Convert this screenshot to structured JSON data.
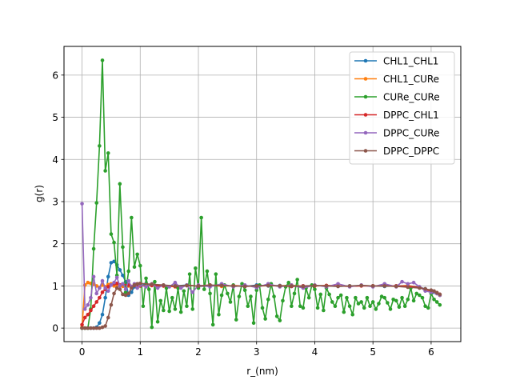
{
  "chart_data": {
    "type": "line",
    "title": "",
    "xlabel": "r_(nm)",
    "ylabel": "g(r)",
    "xlim": [
      -0.31,
      6.51
    ],
    "ylim": [
      -0.32,
      6.68
    ],
    "xticks": [
      0,
      1,
      2,
      3,
      4,
      5,
      6
    ],
    "yticks": [
      0,
      1,
      2,
      3,
      4,
      5,
      6
    ],
    "grid": true,
    "legend_position": "top-right",
    "series": [
      {
        "name": "CHL1_CHL1",
        "color": "#1f77b4",
        "x": [
          0.0,
          0.05,
          0.1,
          0.15,
          0.2,
          0.25,
          0.3,
          0.35,
          0.4,
          0.45,
          0.5,
          0.55,
          0.6,
          0.65,
          0.7,
          0.75,
          0.8,
          0.85,
          0.9,
          0.95,
          1.0,
          1.1,
          1.2,
          1.3,
          1.4,
          1.6,
          1.8,
          2.0,
          2.2,
          2.4,
          2.6,
          2.8,
          3.0,
          3.2,
          3.4,
          3.6,
          3.8,
          4.0,
          4.2,
          4.4,
          4.6,
          4.8,
          5.0,
          5.2,
          5.4,
          5.6,
          5.8,
          5.9,
          6.0,
          6.05,
          6.1,
          6.15
        ],
        "y": [
          0.0,
          0.0,
          0.0,
          0.0,
          0.0,
          0.02,
          0.12,
          0.32,
          0.72,
          1.22,
          1.55,
          1.58,
          1.5,
          1.38,
          1.25,
          1.1,
          0.78,
          0.85,
          0.98,
          1.02,
          1.0,
          1.05,
          1.02,
          0.98,
          1.01,
          1.0,
          1.02,
          0.99,
          1.0,
          1.01,
          1.0,
          0.99,
          1.02,
          1.0,
          1.01,
          0.99,
          1.0,
          1.01,
          1.0,
          0.99,
          1.0,
          1.01,
          1.0,
          0.99,
          1.0,
          1.01,
          0.97,
          0.93,
          0.88,
          0.85,
          0.82,
          0.78
        ]
      },
      {
        "name": "CHL1_CURe",
        "color": "#ff7f0e",
        "x": [
          0.0,
          0.05,
          0.1,
          0.15,
          0.2,
          0.25,
          0.3,
          0.35,
          0.4,
          0.45,
          0.5,
          0.55,
          0.6,
          0.7,
          0.8,
          0.9,
          1.0,
          1.2,
          1.4,
          1.6,
          1.8,
          2.0,
          2.2,
          2.4,
          2.6,
          2.8,
          3.0,
          3.2,
          3.4,
          3.6,
          3.8,
          4.0,
          4.2,
          4.4,
          4.6,
          4.8,
          5.0,
          5.2,
          5.4,
          5.6,
          5.8,
          5.9,
          6.0,
          6.1,
          6.15
        ],
        "y": [
          0.02,
          1.02,
          1.08,
          1.06,
          1.04,
          1.0,
          0.96,
          1.02,
          0.98,
          1.03,
          1.05,
          1.0,
          1.02,
          0.99,
          1.0,
          1.02,
          1.0,
          1.03,
          1.0,
          0.98,
          1.01,
          1.0,
          1.02,
          0.99,
          1.01,
          1.0,
          0.99,
          1.01,
          1.0,
          1.02,
          0.99,
          1.0,
          1.01,
          1.0,
          0.99,
          1.01,
          1.0,
          1.0,
          0.99,
          1.01,
          0.96,
          0.9,
          0.86,
          0.82,
          0.78
        ]
      },
      {
        "name": "CURe_CURe",
        "color": "#2ca02c",
        "x": [
          0.0,
          0.05,
          0.1,
          0.15,
          0.2,
          0.25,
          0.3,
          0.35,
          0.4,
          0.45,
          0.5,
          0.55,
          0.6,
          0.65,
          0.7,
          0.75,
          0.8,
          0.85,
          0.9,
          0.95,
          1.0,
          1.05,
          1.1,
          1.15,
          1.2,
          1.25,
          1.3,
          1.35,
          1.4,
          1.45,
          1.5,
          1.55,
          1.6,
          1.65,
          1.7,
          1.75,
          1.8,
          1.85,
          1.9,
          1.95,
          2.0,
          2.05,
          2.1,
          2.15,
          2.2,
          2.25,
          2.3,
          2.35,
          2.4,
          2.45,
          2.5,
          2.55,
          2.6,
          2.65,
          2.7,
          2.75,
          2.8,
          2.85,
          2.9,
          2.95,
          3.0,
          3.05,
          3.1,
          3.15,
          3.2,
          3.25,
          3.3,
          3.35,
          3.4,
          3.45,
          3.5,
          3.55,
          3.6,
          3.65,
          3.7,
          3.75,
          3.8,
          3.85,
          3.9,
          3.95,
          4.0,
          4.05,
          4.1,
          4.15,
          4.2,
          4.25,
          4.3,
          4.35,
          4.4,
          4.45,
          4.5,
          4.55,
          4.6,
          4.65,
          4.7,
          4.75,
          4.8,
          4.85,
          4.9,
          4.95,
          5.0,
          5.05,
          5.1,
          5.15,
          5.2,
          5.25,
          5.3,
          5.35,
          5.4,
          5.45,
          5.5,
          5.55,
          5.6,
          5.65,
          5.7,
          5.75,
          5.8,
          5.85,
          5.9,
          5.95,
          6.0,
          6.05,
          6.1,
          6.15
        ],
        "y": [
          0.0,
          0.0,
          0.0,
          0.45,
          1.88,
          2.97,
          4.32,
          6.35,
          3.73,
          4.15,
          2.23,
          2.03,
          1.25,
          3.42,
          1.92,
          0.85,
          1.35,
          2.62,
          1.45,
          1.75,
          1.48,
          0.52,
          1.18,
          0.92,
          0.02,
          1.1,
          0.15,
          0.65,
          0.42,
          0.95,
          0.4,
          0.72,
          0.45,
          0.95,
          0.38,
          0.88,
          0.52,
          1.28,
          0.45,
          1.42,
          0.95,
          2.62,
          0.92,
          1.35,
          0.82,
          0.08,
          1.28,
          0.32,
          0.78,
          1.02,
          0.82,
          0.62,
          1.02,
          0.2,
          0.75,
          1.05,
          0.9,
          0.52,
          0.75,
          0.12,
          0.9,
          1.02,
          0.48,
          0.22,
          0.68,
          1.05,
          0.75,
          0.28,
          0.18,
          0.65,
          0.98,
          1.08,
          0.52,
          0.82,
          1.15,
          0.52,
          0.48,
          0.95,
          0.72,
          1.02,
          0.92,
          0.48,
          0.8,
          0.42,
          0.95,
          0.8,
          0.62,
          0.52,
          0.72,
          0.78,
          0.38,
          0.72,
          0.52,
          0.32,
          0.72,
          0.58,
          0.62,
          0.48,
          0.72,
          0.52,
          0.62,
          0.45,
          0.58,
          0.75,
          0.72,
          0.6,
          0.45,
          0.68,
          0.65,
          0.5,
          0.72,
          0.52,
          0.68,
          0.95,
          0.65,
          0.82,
          0.78,
          0.72,
          0.52,
          0.48,
          0.82,
          0.68,
          0.62,
          0.55
        ]
      },
      {
        "name": "DPPC_CHL1",
        "color": "#d62728",
        "x": [
          0.0,
          0.05,
          0.1,
          0.15,
          0.2,
          0.25,
          0.3,
          0.35,
          0.4,
          0.45,
          0.5,
          0.55,
          0.6,
          0.7,
          0.8,
          0.9,
          1.0,
          1.2,
          1.4,
          1.6,
          1.8,
          2.0,
          2.2,
          2.4,
          2.6,
          2.8,
          3.0,
          3.2,
          3.4,
          3.6,
          3.8,
          4.0,
          4.2,
          4.4,
          4.6,
          4.8,
          5.0,
          5.2,
          5.4,
          5.6,
          5.8,
          5.9,
          6.0,
          6.1,
          6.15
        ],
        "y": [
          0.08,
          0.25,
          0.32,
          0.42,
          0.52,
          0.62,
          0.72,
          0.85,
          0.92,
          0.98,
          1.02,
          1.05,
          1.06,
          1.04,
          1.02,
          1.01,
          1.0,
          1.01,
          1.0,
          0.99,
          1.01,
          1.0,
          1.0,
          1.01,
          1.0,
          0.99,
          1.0,
          1.01,
          1.0,
          0.99,
          1.0,
          1.0,
          1.01,
          1.0,
          0.99,
          1.0,
          1.0,
          1.01,
          1.0,
          0.99,
          0.97,
          0.92,
          0.88,
          0.84,
          0.8
        ]
      },
      {
        "name": "DPPC_CURe",
        "color": "#9467bd",
        "x": [
          0.0,
          0.05,
          0.1,
          0.15,
          0.2,
          0.25,
          0.3,
          0.35,
          0.4,
          0.45,
          0.5,
          0.55,
          0.6,
          0.65,
          0.7,
          0.75,
          0.8,
          0.85,
          0.9,
          0.95,
          1.0,
          1.1,
          1.2,
          1.3,
          1.4,
          1.5,
          1.6,
          1.7,
          1.8,
          1.9,
          2.0,
          2.2,
          2.4,
          2.6,
          2.8,
          3.0,
          3.2,
          3.4,
          3.6,
          3.8,
          4.0,
          4.2,
          4.4,
          4.6,
          4.8,
          5.0,
          5.2,
          5.4,
          5.5,
          5.6,
          5.7,
          5.8,
          5.9,
          6.0,
          6.1,
          6.15
        ],
        "y": [
          2.95,
          0.45,
          0.55,
          0.72,
          1.22,
          0.82,
          0.95,
          1.12,
          0.95,
          0.88,
          1.02,
          1.08,
          1.2,
          1.0,
          1.05,
          0.92,
          1.12,
          0.98,
          1.05,
          0.95,
          1.02,
          0.98,
          1.05,
          0.95,
          1.02,
          0.98,
          1.08,
          0.95,
          1.02,
          0.85,
          1.02,
          0.98,
          1.05,
          0.98,
          1.02,
          0.96,
          1.05,
          0.98,
          1.02,
          0.95,
          1.02,
          0.98,
          1.05,
          0.98,
          1.02,
          0.98,
          1.05,
          0.98,
          1.1,
          1.05,
          1.08,
          0.98,
          0.88,
          0.85,
          0.82,
          0.78
        ]
      },
      {
        "name": "DPPC_DPPC",
        "color": "#8c564b",
        "x": [
          0.0,
          0.05,
          0.1,
          0.15,
          0.2,
          0.25,
          0.3,
          0.35,
          0.4,
          0.45,
          0.5,
          0.55,
          0.6,
          0.65,
          0.7,
          0.75,
          0.8,
          0.85,
          0.9,
          0.95,
          1.0,
          1.2,
          1.4,
          1.6,
          1.8,
          2.0,
          2.2,
          2.4,
          2.6,
          2.8,
          3.0,
          3.2,
          3.4,
          3.6,
          3.8,
          4.0,
          4.2,
          4.4,
          4.6,
          4.8,
          5.0,
          5.2,
          5.4,
          5.6,
          5.8,
          5.9,
          6.0,
          6.05,
          6.1,
          6.15
        ],
        "y": [
          0.0,
          0.0,
          0.0,
          0.0,
          0.0,
          0.0,
          0.0,
          0.02,
          0.05,
          0.25,
          0.55,
          0.82,
          0.95,
          0.92,
          0.8,
          0.78,
          0.82,
          0.95,
          1.02,
          1.05,
          1.06,
          1.04,
          1.02,
          1.0,
          1.01,
          1.0,
          1.02,
          1.01,
          1.0,
          0.99,
          1.0,
          1.01,
          1.0,
          1.0,
          0.99,
          1.01,
          1.0,
          0.99,
          1.0,
          1.01,
          1.0,
          1.0,
          0.99,
          0.97,
          0.95,
          0.93,
          0.9,
          0.88,
          0.84,
          0.8
        ]
      }
    ]
  }
}
